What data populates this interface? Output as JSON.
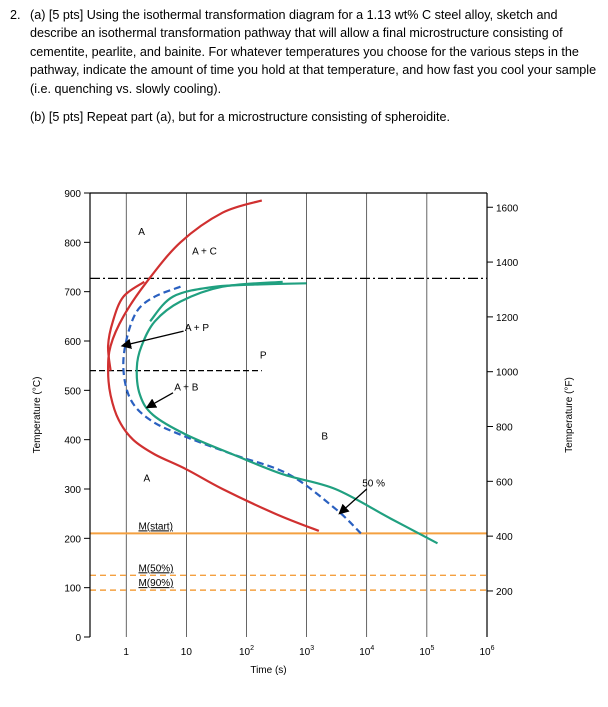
{
  "question": {
    "number": "2.",
    "part_a": "(a) [5 pts] Using the isothermal transformation diagram for a 1.13 wt% C steel alloy, sketch and describe an isothermal transformation pathway that will allow a final microstructure consisting of cementite, pearlite, and bainite. For whatever temperatures you choose for the various steps in the pathway, indicate the amount of time you hold at that temperature, and how fast you cool your sample (i.e. quenching vs. slowly cooling).",
    "part_b": "(b) [5 pts] Repeat part (a), but for a microstructure consisting of spheroidite."
  },
  "chart_data": {
    "type": "line",
    "title": "",
    "xlabel": "Time (s)",
    "ylabel": "Temperature (°C)",
    "ylabel_right": "Temperature (°F)",
    "x_scale": "log",
    "xlim": [
      0.25,
      1000000
    ],
    "ylim": [
      0,
      900
    ],
    "x_ticks": [
      1,
      10,
      100,
      1000,
      10000,
      100000,
      1000000
    ],
    "x_tick_labels": [
      {
        "base": "1",
        "exp": ""
      },
      {
        "base": "10",
        "exp": ""
      },
      {
        "base": "10",
        "exp": "2"
      },
      {
        "base": "10",
        "exp": "3"
      },
      {
        "base": "10",
        "exp": "4"
      },
      {
        "base": "10",
        "exp": "5"
      },
      {
        "base": "10",
        "exp": "6"
      }
    ],
    "y_ticks": [
      0,
      100,
      200,
      300,
      400,
      500,
      600,
      700,
      800,
      900
    ],
    "y_tick_labels": [
      "0",
      "100",
      "200",
      "300",
      "400",
      "500",
      "600",
      "700",
      "800",
      "900"
    ],
    "y2_ticks_F": [
      200,
      400,
      600,
      800,
      1000,
      1200,
      1400,
      1600
    ],
    "y2_tick_labels": [
      "200",
      "400",
      "600",
      "800",
      "1000",
      "1200",
      "1400",
      "1600"
    ],
    "reference_lines": [
      {
        "name": "eutectoid-temperature",
        "y": 727,
        "style": "dash-dot",
        "color": "#000000"
      },
      {
        "name": "pearlite-bainite-boundary",
        "y": 540,
        "style": "dashed",
        "color": "#000000",
        "x_end": 180
      }
    ],
    "martensite_lines": [
      {
        "name": "m-start-line",
        "label": "M(start)",
        "y": 210,
        "color": "#f4a040",
        "style": "solid"
      },
      {
        "name": "m-50-line",
        "label": "M(50%)",
        "y": 125,
        "color": "#f4a040",
        "style": "dashed"
      },
      {
        "name": "m-90-line",
        "label": "M(90%)",
        "y": 95,
        "color": "#f4a040",
        "style": "dashed"
      }
    ],
    "series": [
      {
        "name": "Start of transformation",
        "color": "#d03030",
        "x": [
          180,
          40,
          8,
          2.2,
          0.9,
          0.55,
          0.5,
          0.55,
          0.75,
          1.3,
          3,
          10,
          40,
          300,
          1600
        ],
        "y": [
          885,
          860,
          800,
          720,
          650,
          590,
          540,
          490,
          440,
          400,
          370,
          340,
          300,
          250,
          215
        ]
      },
      {
        "name": "Start of transformation (upper)",
        "color": "#d03030",
        "x": [
          2,
          0.9,
          0.6,
          0.5,
          0.55
        ],
        "y": [
          720,
          690,
          640,
          590,
          540
        ]
      },
      {
        "name": "50% transformation",
        "color": "#2a60c0",
        "dashed": true,
        "x": [
          8,
          3,
          1.5,
          1.0,
          0.9,
          1.2,
          2.5,
          8,
          60,
          500,
          3000,
          8000
        ],
        "y": [
          710,
          690,
          660,
          600,
          540,
          480,
          440,
          410,
          370,
          330,
          260,
          210
        ]
      },
      {
        "name": "Completion of transformation (upper)",
        "color": "#20a080",
        "x": [
          1000,
          200,
          30,
          6,
          2.5
        ],
        "y": [
          717,
          715,
          710,
          690,
          640
        ]
      },
      {
        "name": "Completion of transformation",
        "color": "#20a080",
        "x": [
          400,
          40,
          8,
          3,
          1.8,
          1.5,
          1.7,
          2.8,
          10,
          60,
          400,
          3000,
          25000,
          150000
        ],
        "y": [
          720,
          710,
          680,
          640,
          590,
          545,
          490,
          450,
          410,
          370,
          330,
          300,
          240,
          190
        ]
      }
    ],
    "region_labels": [
      {
        "text": "A",
        "x": 1.8,
        "y": 815
      },
      {
        "text": "A + C",
        "x": 20,
        "y": 775
      },
      {
        "text": "A + P",
        "x": 15,
        "y": 620
      },
      {
        "text": "P",
        "x": 190,
        "y": 565
      },
      {
        "text": "A + B",
        "x": 10,
        "y": 500
      },
      {
        "text": "B",
        "x": 2000,
        "y": 400
      },
      {
        "text": "A",
        "x": 2.2,
        "y": 315
      },
      {
        "text": "50 %",
        "x": 13000,
        "y": 305
      }
    ],
    "arrows": [
      {
        "name": "a-p-pointer",
        "from": [
          9,
          620
        ],
        "to": [
          0.85,
          590
        ]
      },
      {
        "name": "a-b-pointer",
        "from": [
          6,
          495
        ],
        "to": [
          2.2,
          465
        ]
      },
      {
        "name": "fifty-percent-pointer",
        "from": [
          10000,
          300
        ],
        "to": [
          3500,
          250
        ]
      }
    ]
  }
}
